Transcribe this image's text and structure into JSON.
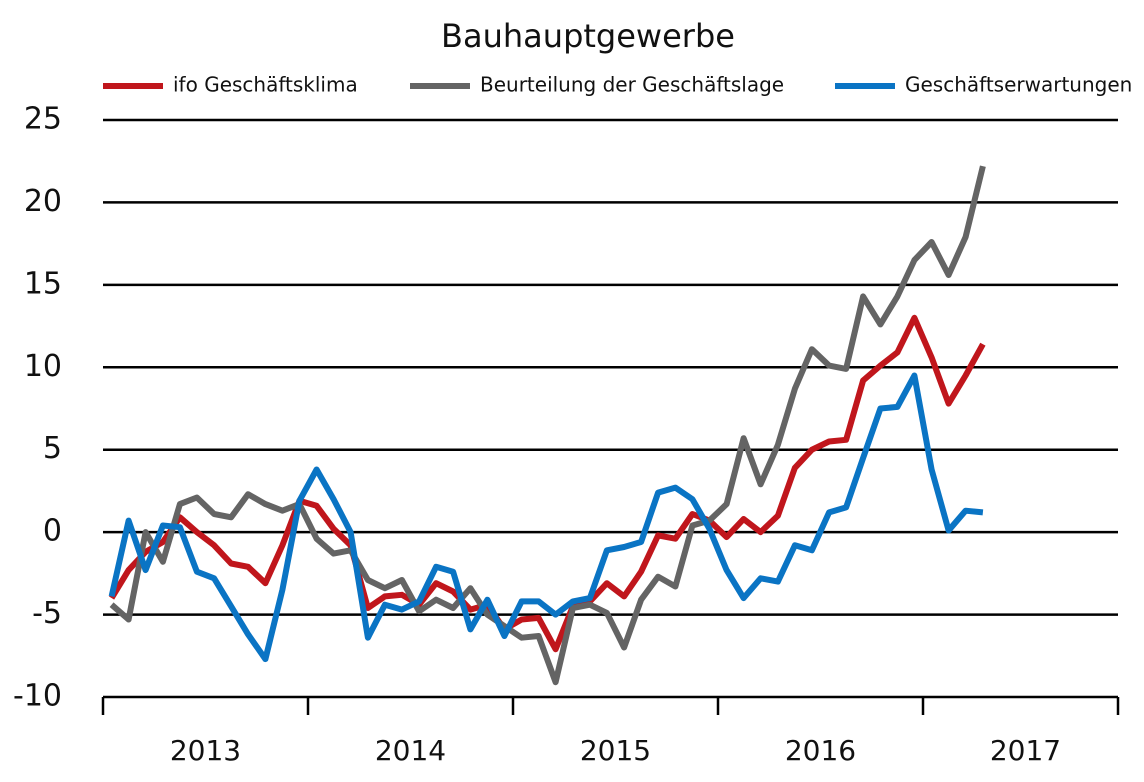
{
  "chart_data": {
    "type": "line",
    "title": "Bauhauptgewerbe",
    "x": [
      2013.042,
      2013.125,
      2013.208,
      2013.292,
      2013.375,
      2013.458,
      2013.542,
      2013.625,
      2013.708,
      2013.792,
      2013.875,
      2013.958,
      2014.042,
      2014.125,
      2014.208,
      2014.292,
      2014.375,
      2014.458,
      2014.542,
      2014.625,
      2014.708,
      2014.792,
      2014.875,
      2014.958,
      2015.042,
      2015.125,
      2015.208,
      2015.292,
      2015.375,
      2015.458,
      2015.542,
      2015.625,
      2015.708,
      2015.792,
      2015.875,
      2015.958,
      2016.042,
      2016.125,
      2016.208,
      2016.292,
      2016.375,
      2016.458,
      2016.542,
      2016.625,
      2016.708,
      2016.792,
      2016.875,
      2016.958,
      2017.042,
      2017.125,
      2017.208,
      2017.292
    ],
    "series": [
      {
        "name": "ifo Geschäftsklima",
        "color": "#c0161c",
        "values": [
          -4,
          -2.3,
          -1.2,
          -0.6,
          0.9,
          0,
          -0.8,
          -1.9,
          -2.1,
          -3.1,
          -0.8,
          1.9,
          1.6,
          0.2,
          -0.8,
          -4.6,
          -3.9,
          -3.8,
          -4.4,
          -3.1,
          -3.6,
          -4.7,
          -4.4,
          -5.9,
          -5.3,
          -5.2,
          -7.1,
          -4.5,
          -4.2,
          -3.1,
          -3.9,
          -2.4,
          -0.2,
          -0.4,
          1.1,
          0.7,
          -0.3,
          0.8,
          0,
          1,
          3.9,
          5,
          5.5,
          5.6,
          9.2,
          10.1,
          10.9,
          13,
          10.6,
          7.8,
          9.5,
          11.4
        ]
      },
      {
        "name": "Beurteilung der Geschäftslage",
        "color": "#646464",
        "values": [
          -4.4,
          -5.3,
          0,
          -1.8,
          1.7,
          2.1,
          1.1,
          0.9,
          2.3,
          1.7,
          1.3,
          1.7,
          -0.4,
          -1.3,
          -1.1,
          -2.9,
          -3.4,
          -2.9,
          -4.8,
          -4.1,
          -4.6,
          -3.4,
          -5,
          -5.7,
          -6.4,
          -6.3,
          -9.1,
          -4.6,
          -4.4,
          -4.9,
          -7,
          -4.1,
          -2.7,
          -3.3,
          0.4,
          0.7,
          1.7,
          5.7,
          2.9,
          5.3,
          8.7,
          11.1,
          10.1,
          9.9,
          14.3,
          12.6,
          14.3,
          16.5,
          17.6,
          15.6,
          17.9,
          22.2
        ]
      },
      {
        "name": "Geschäftserwartungen",
        "color": "#0a74c4",
        "values": [
          -3.9,
          0.7,
          -2.3,
          0.4,
          0.3,
          -2.4,
          -2.8,
          -4.5,
          -6.2,
          -7.7,
          -3.5,
          1.9,
          3.8,
          2,
          0,
          -6.4,
          -4.4,
          -4.7,
          -4.2,
          -2.1,
          -2.4,
          -5.9,
          -4.1,
          -6.3,
          -4.2,
          -4.2,
          -5,
          -4.2,
          -4,
          -1.1,
          -0.9,
          -0.6,
          2.4,
          2.7,
          2,
          0.2,
          -2.3,
          -4,
          -2.8,
          -3,
          -0.8,
          -1.1,
          1.2,
          1.5,
          4.5,
          7.5,
          7.6,
          9.5,
          3.8,
          0.1,
          1.3,
          1.2
        ]
      }
    ],
    "xlim": [
      2013,
      2018
    ],
    "xticks": [
      2013,
      2014,
      2015,
      2016,
      2017,
      2018
    ],
    "ylim": [
      -10,
      25
    ],
    "yticks": [
      -10,
      -5,
      0,
      5,
      10,
      15,
      20,
      25
    ],
    "grid": true
  }
}
